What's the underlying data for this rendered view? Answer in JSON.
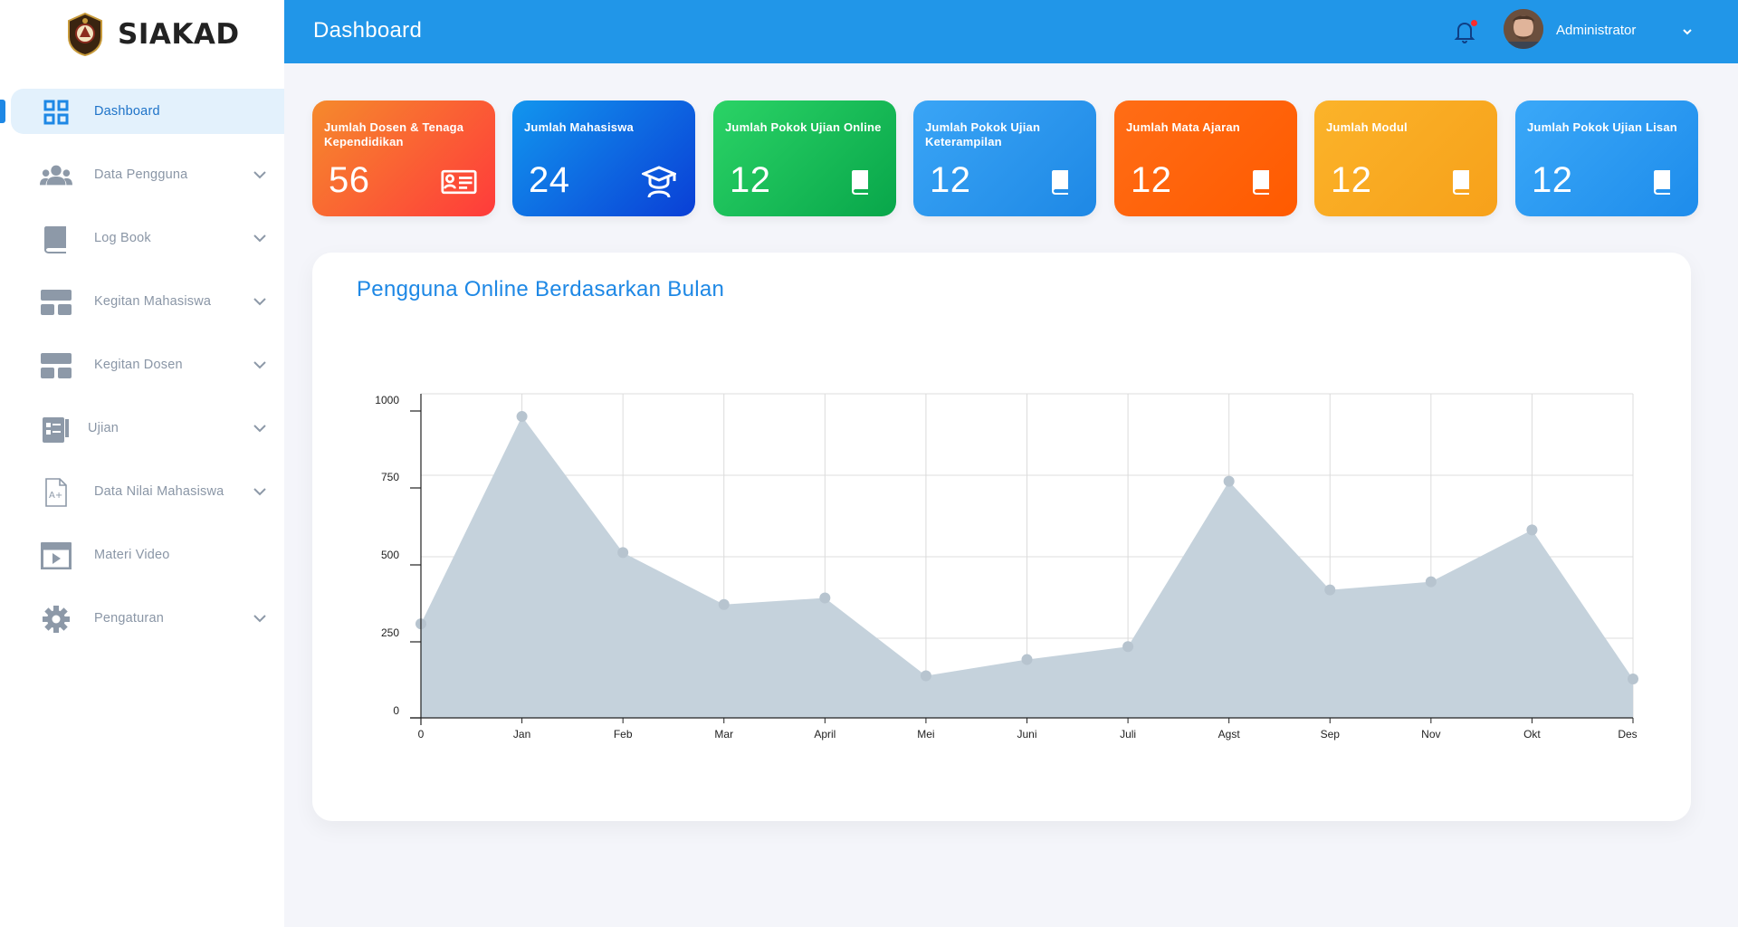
{
  "app": {
    "name": "SIAKAD"
  },
  "header": {
    "title": "Dashboard",
    "user_name": "Administrator"
  },
  "sidebar": {
    "items": [
      {
        "label": "Dashboard",
        "icon": "grid-icon",
        "active": true,
        "has_chevron": false
      },
      {
        "label": "Data Pengguna",
        "icon": "users-icon",
        "has_chevron": true
      },
      {
        "label": "Log Book",
        "icon": "book-icon",
        "has_chevron": true
      },
      {
        "label": "Kegitan Mahasiswa",
        "icon": "blocks-icon",
        "has_chevron": true
      },
      {
        "label": "Kegitan Dosen",
        "icon": "blocks-icon",
        "has_chevron": true
      },
      {
        "label": "Ujian",
        "icon": "checklist-icon",
        "has_chevron": true
      },
      {
        "label": "Data Nilai Mahasiswa",
        "icon": "grade-document-icon",
        "has_chevron": true
      },
      {
        "label": "Materi Video",
        "icon": "video-icon",
        "has_chevron": false
      },
      {
        "label": "Pengaturan",
        "icon": "gear-icon",
        "has_chevron": true
      }
    ]
  },
  "cards": [
    {
      "label": "Jumlah Dosen & Tenaga Kependidikan",
      "value": "56",
      "icon": "id-card-icon",
      "colors": [
        "#f58a2c",
        "#ff3b3b"
      ]
    },
    {
      "label": "Jumlah Mahasiswa",
      "value": "24",
      "icon": "graduate-icon",
      "colors": [
        "#1296ee",
        "#0a3fd6"
      ]
    },
    {
      "label": "Jumlah Pokok Ujian Online",
      "value": "12",
      "icon": "book-icon",
      "colors": [
        "#2bd366",
        "#08a64a"
      ]
    },
    {
      "label": "Jumlah Pokok Ujian Keterampilan",
      "value": "12",
      "icon": "book-icon",
      "colors": [
        "#3aa5f6",
        "#1e88e5"
      ]
    },
    {
      "label": "Jumlah Mata Ajaran",
      "value": "12",
      "icon": "book-icon",
      "colors": [
        "#ff6d16",
        "#ff5a00"
      ]
    },
    {
      "label": "Jumlah Modul",
      "value": "12",
      "icon": "book-icon",
      "colors": [
        "#fbb32a",
        "#f7a11a"
      ]
    },
    {
      "label": "Jumlah Pokok Ujian Lisan",
      "value": "12",
      "icon": "book-icon",
      "colors": [
        "#3aa8f8",
        "#1e8ceb"
      ]
    }
  ],
  "chart_data": {
    "type": "area",
    "title": "Pengguna Online Berdasarkan Bulan",
    "categories": [
      "0",
      "Jan",
      "Feb",
      "Mar",
      "April",
      "Mei",
      "Juni",
      "Juli",
      "Agst",
      "Sep",
      "Nov",
      "Okt",
      "Des"
    ],
    "series": [
      {
        "values": [
          290,
          930,
          510,
          350,
          370,
          130,
          180,
          220,
          730,
          395,
          420,
          580,
          120
        ]
      }
    ],
    "y_ticks": [
      "1000",
      "750",
      "500",
      "250",
      "0"
    ],
    "ylim": [
      0,
      1000
    ],
    "grid": true,
    "fill_color": "#c5d2dc",
    "point_color": "#b7c4cf"
  }
}
